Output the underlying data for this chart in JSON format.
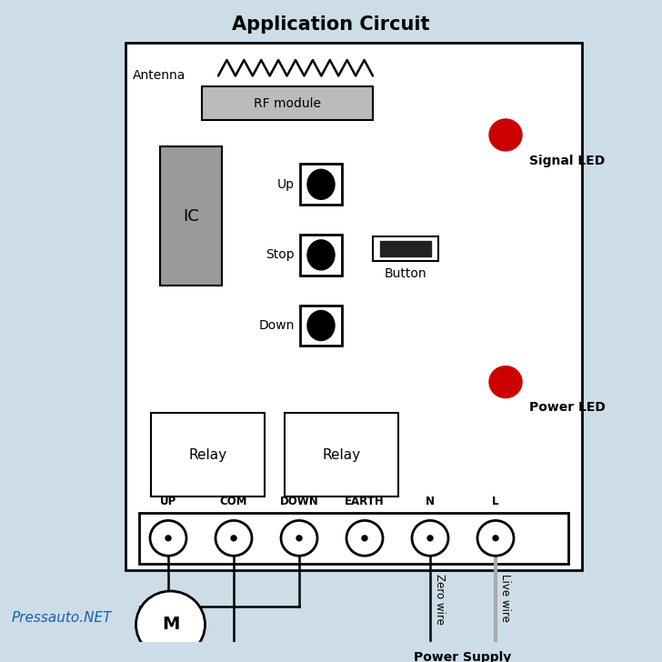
{
  "title": "Application Circuit",
  "bg_color": "#ccdde8",
  "board_color": "#ffffff",
  "board_border": "#000000",
  "antenna_label": "Antenna",
  "rf_module_label": "RF module",
  "ic_label": "IC",
  "signal_led_label": "Signal LED",
  "power_led_label": "Power LED",
  "button_label": "Button",
  "up_label": "Up",
  "stop_label": "Stop",
  "down_label": "Down",
  "relay1_label": "Relay",
  "relay2_label": "Relay",
  "terminal_labels": [
    "UP",
    "COM",
    "DOWN",
    "EARTH",
    "N",
    "L"
  ],
  "motor_label": "M",
  "zero_wire_label": "Zero wire",
  "live_wire_label": "Live wire",
  "power_supply_label": "Power Supply",
  "pressauto_label": "Pressauto.NET",
  "led_color": "#cc0000",
  "ic_gray": "#999999",
  "rf_gray": "#bbbbbb",
  "live_wire_color": "#aaaaaa"
}
